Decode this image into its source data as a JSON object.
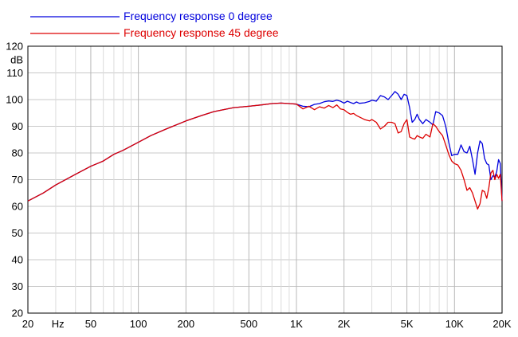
{
  "chart_data": {
    "type": "line",
    "title": "",
    "xlabel": "Hz",
    "ylabel": "dB",
    "x_scale": "log",
    "xlim": [
      20,
      20000
    ],
    "ylim": [
      20,
      120
    ],
    "grid": true,
    "legend_position": "top-left",
    "x_ticks": [
      {
        "value": 20,
        "label": "20"
      },
      {
        "value": 50,
        "label": "50"
      },
      {
        "value": 100,
        "label": "100"
      },
      {
        "value": 200,
        "label": "200"
      },
      {
        "value": 500,
        "label": "500"
      },
      {
        "value": 1000,
        "label": "1K"
      },
      {
        "value": 2000,
        "label": "2K"
      },
      {
        "value": 5000,
        "label": "5K"
      },
      {
        "value": 10000,
        "label": "10K"
      },
      {
        "value": 20000,
        "label": "20K"
      }
    ],
    "y_ticks": [
      20,
      30,
      40,
      50,
      60,
      70,
      80,
      90,
      100,
      110,
      120
    ],
    "series": [
      {
        "name": "Frequency response 0 degree",
        "color": "#0000dd",
        "x": [
          20,
          25,
          30,
          40,
          50,
          60,
          70,
          80,
          100,
          120,
          150,
          200,
          250,
          300,
          400,
          500,
          600,
          700,
          800,
          900,
          1000,
          1100,
          1200,
          1300,
          1400,
          1500,
          1600,
          1700,
          1800,
          1900,
          2000,
          2100,
          2200,
          2300,
          2400,
          2500,
          2700,
          2900,
          3000,
          3200,
          3400,
          3600,
          3800,
          4000,
          4200,
          4400,
          4600,
          4800,
          5000,
          5200,
          5400,
          5600,
          5800,
          6000,
          6300,
          6600,
          7000,
          7300,
          7600,
          8000,
          8400,
          8800,
          9200,
          9600,
          10000,
          10500,
          11000,
          11500,
          12000,
          12500,
          13000,
          13500,
          14000,
          14500,
          15000,
          15500,
          16000,
          16500,
          17000,
          17500,
          18000,
          18500,
          19000,
          19500,
          20000
        ],
        "values": [
          62,
          65,
          68,
          72,
          75,
          77,
          79.5,
          81,
          84,
          86.5,
          89,
          92,
          94,
          95.5,
          97,
          97.5,
          98,
          98.5,
          98.7,
          98.5,
          98.3,
          97.5,
          97.3,
          98.2,
          98.5,
          99.2,
          99.5,
          99.3,
          99.8,
          99.4,
          98.7,
          99.4,
          98.9,
          98.5,
          99.1,
          98.6,
          98.8,
          99.3,
          99.8,
          99.4,
          101.5,
          101,
          100,
          101.5,
          103,
          102,
          100,
          102,
          101.5,
          97,
          91.5,
          92.5,
          94.5,
          92.5,
          91,
          92.5,
          91.5,
          90.5,
          95.5,
          95,
          94,
          90,
          84,
          79,
          79.5,
          79.5,
          83,
          80.5,
          80,
          82.5,
          77.5,
          72,
          80,
          84.5,
          83.5,
          78,
          76,
          75.5,
          70,
          71.5,
          71,
          73,
          77.5,
          76,
          62
        ]
      },
      {
        "name": "Frequency response 45 degree",
        "color": "#dd0000",
        "x": [
          20,
          25,
          30,
          40,
          50,
          60,
          70,
          80,
          100,
          120,
          150,
          200,
          250,
          300,
          400,
          500,
          600,
          700,
          800,
          900,
          1000,
          1100,
          1200,
          1300,
          1400,
          1500,
          1600,
          1700,
          1800,
          1900,
          2000,
          2100,
          2200,
          2300,
          2400,
          2500,
          2700,
          2900,
          3000,
          3200,
          3400,
          3600,
          3800,
          4000,
          4200,
          4400,
          4600,
          4800,
          5000,
          5200,
          5400,
          5600,
          5800,
          6000,
          6300,
          6600,
          7000,
          7300,
          7600,
          8000,
          8400,
          8800,
          9200,
          9600,
          10000,
          10500,
          11000,
          11500,
          12000,
          12500,
          13000,
          13500,
          14000,
          14500,
          15000,
          15500,
          16000,
          16500,
          17000,
          17500,
          18000,
          18500,
          19000,
          19500,
          20000
        ],
        "values": [
          62,
          65,
          68,
          72,
          75,
          77,
          79.5,
          81,
          84,
          86.5,
          89,
          92,
          94,
          95.5,
          97,
          97.5,
          98,
          98.5,
          98.7,
          98.5,
          98.3,
          96.5,
          97.5,
          96.2,
          97.3,
          96.8,
          97.8,
          97,
          98,
          96.5,
          96.2,
          95.2,
          94.5,
          94.8,
          94,
          93.5,
          92.5,
          92,
          92.5,
          91.5,
          89,
          90,
          91.5,
          91.5,
          91,
          87.5,
          88,
          91,
          92.5,
          86,
          85.5,
          85.2,
          86.5,
          86,
          85.5,
          87,
          86,
          91,
          90,
          88,
          86.5,
          83,
          79.5,
          77,
          76,
          75.5,
          73.5,
          70,
          66,
          67,
          65,
          62,
          59,
          61,
          66,
          65.5,
          63,
          67,
          72.5,
          73.5,
          70,
          72,
          70.5,
          72,
          62
        ]
      }
    ]
  }
}
